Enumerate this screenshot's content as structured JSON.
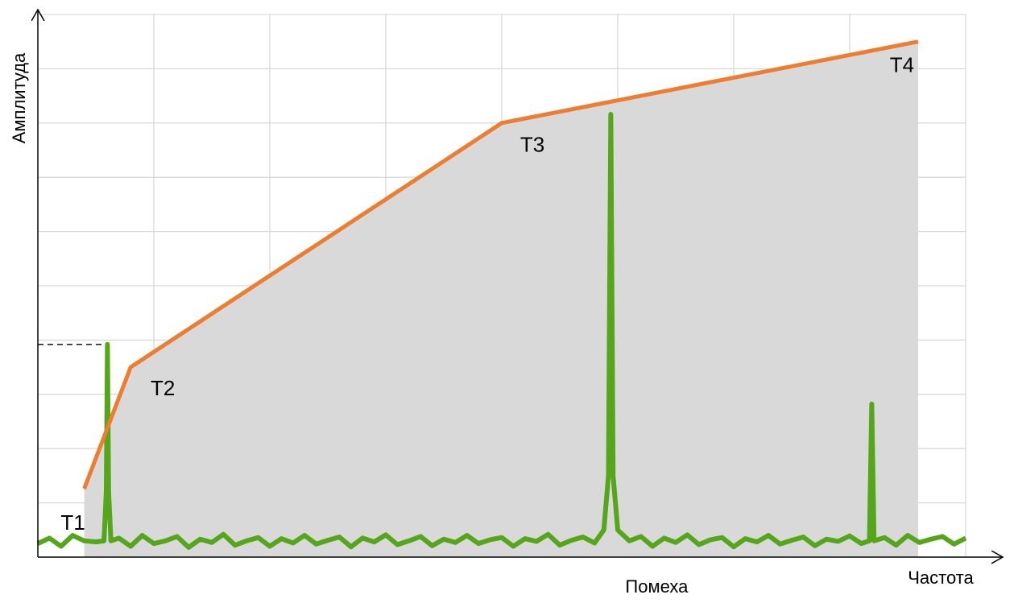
{
  "chart_data": {
    "type": "line",
    "y_label": "Амплитуда",
    "x_label": "Частота",
    "annotation": "Помеха",
    "xlim": [
      0,
      8
    ],
    "ylim": [
      0,
      10
    ],
    "xticks": [
      1,
      2,
      3,
      4,
      5,
      6,
      7,
      8
    ],
    "yticks": [
      1,
      2,
      3,
      4,
      5,
      6,
      7,
      8,
      9,
      10
    ],
    "grid": true,
    "area_color": "#d9d9d9",
    "limit": {
      "color": "#ed7d31",
      "x": [
        0.4,
        0.8,
        4.0,
        7.59
      ],
      "values": [
        1.26,
        3.5,
        8.0,
        9.5
      ],
      "point_labels": [
        "T1",
        "T2",
        "T3",
        "T4"
      ]
    },
    "signal": {
      "color": "#56a61c",
      "x": [
        0.0,
        0.1,
        0.2,
        0.3,
        0.4,
        0.5,
        0.57,
        0.59,
        0.6,
        0.61,
        0.63,
        0.7,
        0.8,
        0.9,
        1.0,
        1.1,
        1.2,
        1.3,
        1.4,
        1.5,
        1.6,
        1.7,
        1.8,
        1.9,
        2.0,
        2.1,
        2.2,
        2.3,
        2.4,
        2.5,
        2.6,
        2.7,
        2.8,
        2.9,
        3.0,
        3.1,
        3.2,
        3.3,
        3.4,
        3.5,
        3.6,
        3.7,
        3.8,
        3.9,
        4.0,
        4.1,
        4.2,
        4.3,
        4.4,
        4.5,
        4.6,
        4.7,
        4.8,
        4.88,
        4.92,
        4.94,
        4.96,
        5.0,
        5.1,
        5.2,
        5.3,
        5.4,
        5.5,
        5.6,
        5.7,
        5.8,
        5.9,
        6.0,
        6.1,
        6.2,
        6.3,
        6.4,
        6.5,
        6.6,
        6.7,
        6.8,
        6.9,
        7.0,
        7.1,
        7.17,
        7.19,
        7.21,
        7.3,
        7.4,
        7.5,
        7.6,
        7.7,
        7.8,
        7.9,
        8.0
      ],
      "values": [
        0.25,
        0.35,
        0.2,
        0.4,
        0.3,
        0.28,
        0.3,
        1.2,
        3.92,
        1.2,
        0.3,
        0.35,
        0.2,
        0.4,
        0.25,
        0.3,
        0.38,
        0.18,
        0.33,
        0.27,
        0.42,
        0.22,
        0.3,
        0.36,
        0.2,
        0.34,
        0.26,
        0.4,
        0.24,
        0.31,
        0.37,
        0.19,
        0.35,
        0.28,
        0.41,
        0.23,
        0.3,
        0.38,
        0.21,
        0.33,
        0.27,
        0.4,
        0.25,
        0.32,
        0.36,
        0.2,
        0.34,
        0.29,
        0.42,
        0.22,
        0.31,
        0.37,
        0.26,
        0.5,
        1.5,
        8.16,
        1.5,
        0.5,
        0.3,
        0.38,
        0.2,
        0.35,
        0.27,
        0.41,
        0.23,
        0.32,
        0.36,
        0.19,
        0.34,
        0.28,
        0.4,
        0.24,
        0.31,
        0.37,
        0.21,
        0.33,
        0.29,
        0.39,
        0.25,
        0.3,
        2.82,
        0.3,
        0.36,
        0.22,
        0.4,
        0.27,
        0.33,
        0.38,
        0.24,
        0.35
      ]
    }
  }
}
